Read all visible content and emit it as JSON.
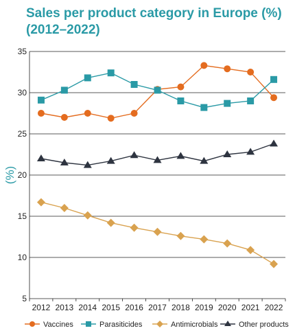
{
  "chart_data": {
    "type": "line",
    "title_line1": "Sales per product category in Europe (%)",
    "title_line2": "(2012–2022)",
    "ylabel": "(%)",
    "ylim": [
      5,
      35
    ],
    "yticks": [
      5,
      10,
      15,
      20,
      25,
      30,
      35
    ],
    "grid": "horizontal",
    "legend_position": "bottom",
    "categories": [
      "2012",
      "2013",
      "2014",
      "2015",
      "2016",
      "2017",
      "2018",
      "2019",
      "2020",
      "2021",
      "2022"
    ],
    "series": [
      {
        "name": "Vaccines",
        "color": "#e46c1f",
        "marker": "circle",
        "values": [
          27.5,
          27.0,
          27.5,
          26.9,
          27.5,
          30.4,
          30.7,
          33.3,
          32.9,
          32.5,
          29.4
        ]
      },
      {
        "name": "Parasiticides",
        "color": "#2a9aa6",
        "marker": "square",
        "values": [
          29.1,
          30.3,
          31.8,
          32.4,
          31.0,
          30.3,
          29.0,
          28.2,
          28.7,
          29.0,
          31.6
        ]
      },
      {
        "name": "Antimicrobials",
        "color": "#d9a24f",
        "marker": "diamond",
        "values": [
          16.7,
          16.0,
          15.1,
          14.2,
          13.6,
          13.1,
          12.6,
          12.2,
          11.7,
          10.9,
          9.2
        ]
      },
      {
        "name": "Other products",
        "color": "#2e3440",
        "marker": "triangle",
        "values": [
          22.0,
          21.5,
          21.2,
          21.7,
          22.4,
          21.8,
          22.3,
          21.7,
          22.5,
          22.8,
          23.8
        ]
      }
    ]
  }
}
